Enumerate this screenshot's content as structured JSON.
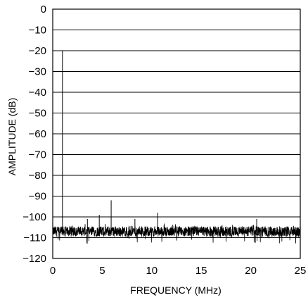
{
  "chart_data": {
    "type": "line",
    "title": "",
    "xlabel": "FREQUENCY (MHz)",
    "ylabel": "AMPLITUDE (dB)",
    "xlim": [
      0,
      25
    ],
    "ylim": [
      -120,
      0
    ],
    "xticks": [
      0,
      5,
      10,
      15,
      20,
      25
    ],
    "yticks": [
      0,
      -10,
      -20,
      -30,
      -40,
      -50,
      -60,
      -70,
      -80,
      -90,
      -100,
      -110,
      -120
    ],
    "xtick_labels": [
      "0",
      "5",
      "10",
      "15",
      "20",
      "25"
    ],
    "ytick_labels": [
      "0",
      "−10",
      "−20",
      "−30",
      "−40",
      "−50",
      "−60",
      "−70",
      "−80",
      "−90",
      "−100",
      "−110",
      "−120"
    ],
    "grid": "horizontal",
    "noise_floor_db": -107,
    "noise_band_db": [
      -110,
      -104
    ],
    "spurs": [
      {
        "x": 0.98,
        "y": -20
      },
      {
        "x": 3.5,
        "y": -101
      },
      {
        "x": 4.7,
        "y": -99
      },
      {
        "x": 5.9,
        "y": -92
      },
      {
        "x": 8.3,
        "y": -101
      },
      {
        "x": 10.6,
        "y": -98
      },
      {
        "x": 20.6,
        "y": -101
      }
    ]
  }
}
